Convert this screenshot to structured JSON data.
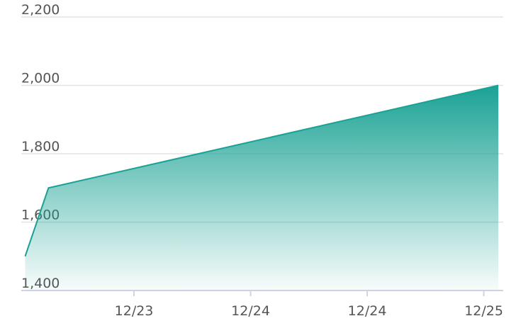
{
  "chart_data": {
    "type": "area",
    "x": [
      0.8,
      3.2,
      49.5
    ],
    "series": [
      {
        "color": "#1aa294",
        "values": [
          1500,
          1700,
          2000
        ]
      }
    ],
    "xlim": [
      0.4,
      50
    ],
    "xticks": [
      {
        "value": 12,
        "label": "12/23"
      },
      {
        "value": 24,
        "label": "12/24"
      },
      {
        "value": 36,
        "label": "12/24"
      },
      {
        "value": 48,
        "label": "12/25"
      }
    ],
    "ylim": [
      1400,
      2200
    ],
    "yticks": [
      {
        "value": 1400,
        "label": "1,400"
      },
      {
        "value": 1600,
        "label": "1,600"
      },
      {
        "value": 1800,
        "label": "1,800"
      },
      {
        "value": 2000,
        "label": "2,000"
      },
      {
        "value": 2200,
        "label": "2,200"
      }
    ],
    "grid": true
  }
}
